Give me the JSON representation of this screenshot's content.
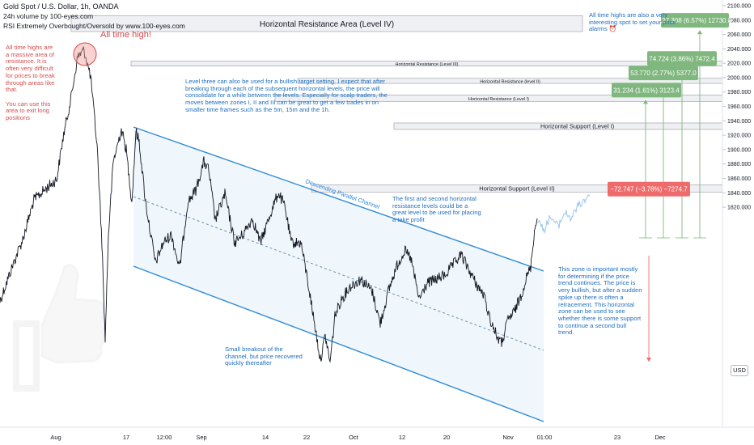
{
  "header": {
    "symbol_line": "Gold Spot / U.S. Dollar, 1h, OANDA",
    "volume_line": "24h volume by 100-eyes.com",
    "rsi_line": "RSI Extremely Overbought/Oversold by www.100-eyes.com"
  },
  "currency_button": "USD",
  "annotations": {
    "all_time_high": "All time high!",
    "left_note": "All time highs are a massive area of resistance. It is often very difficult for prices to break through areas like that.\n\nYou can use this area to exit long positions",
    "level_three_note": "Level three can also be used for a bullish target setting. I expect that after breaking through each of the subsequent horizontal levels, the price will consolidate for a while between the levels. Especially for scalp traders, the moves between zones I, II and III can be great to get a few trades in on smaller time frames such as the 5m, 15m and the 1h.",
    "top_right_note": "All time highs are also a very interesting spot to set your price alarms ⏰",
    "first_second_note": "The first and second horizontal resistance levels could be a great level to be used for placing a take profit",
    "zone_note": "This zone is important mostly for determining if the price trend continues. The price is very bullish, but after a sudden spike up there is often a retracement. This horizontal zone can be used to see whether there is some support to continue a second bull trend.",
    "breakout_note": "Small breakout of the channel, but price recovered quickly thereafter",
    "channel_label": "Descending Parallel Channel"
  },
  "chart_data": {
    "type": "line",
    "title": "",
    "ylim": [
      1805,
      2100
    ],
    "y_ticks": [
      1820,
      1840,
      1860,
      1880,
      1900,
      1920,
      1940,
      1960,
      1980,
      2000,
      2020,
      2040,
      2060,
      2080,
      2100
    ],
    "x_tick_labels": [
      "Aug",
      "17",
      "12:00",
      "Sep",
      "14",
      "22",
      "Oct",
      "12",
      "20",
      "Nov",
      "01:00",
      "23",
      "Dec"
    ],
    "price_labels_right": [
      "1820.000",
      "1840.000",
      "1860.000",
      "1880.000",
      "1900.000",
      "1920.000",
      "1940.000",
      "1960.000",
      "1980.000",
      "2000.000",
      "2020.000",
      "2040.000",
      "2060.000",
      "2080.000",
      "2100.000"
    ],
    "zones": [
      {
        "name": "Horizontal Resistance Area (Level IV)",
        "y_low": 2064,
        "y_high": 2086
      },
      {
        "name": "Horizontal Resistance (Level III)",
        "y_low": 2016,
        "y_high": 2023
      },
      {
        "name": "Horizontal Resistance (level II)",
        "y_low": 1992,
        "y_high": 1999
      },
      {
        "name": "Horizontal Resistance (Level I)",
        "y_low": 1967,
        "y_high": 1976
      },
      {
        "name": "Horizontal Support (Level I)",
        "y_low": 1928,
        "y_high": 1937
      },
      {
        "name": "Horizontal Support (Level II)",
        "y_low": 1841,
        "y_high": 1851
      }
    ],
    "targets": [
      {
        "label": "31.234 (1.61%) 3123.4",
        "price": 1968
      },
      {
        "label": "53.770 (2.77%) 5377.0",
        "price": 1992
      },
      {
        "label": "74.724 (3.86%) 7472.4",
        "price": 2012
      },
      {
        "label": "127.308 (6.57%) 12730.8",
        "price": 2065
      }
    ],
    "stop": {
      "label": "−72.747 (−3.78%) −7274.7",
      "price": 1862
    },
    "colors": {
      "channel": "#2f8ad6",
      "target_box": "#7fb77e",
      "stop_box": "#ef6b6b",
      "price_line": "#131722",
      "projection": "#9cc6ec",
      "thumb": "#f0f0f0"
    }
  }
}
